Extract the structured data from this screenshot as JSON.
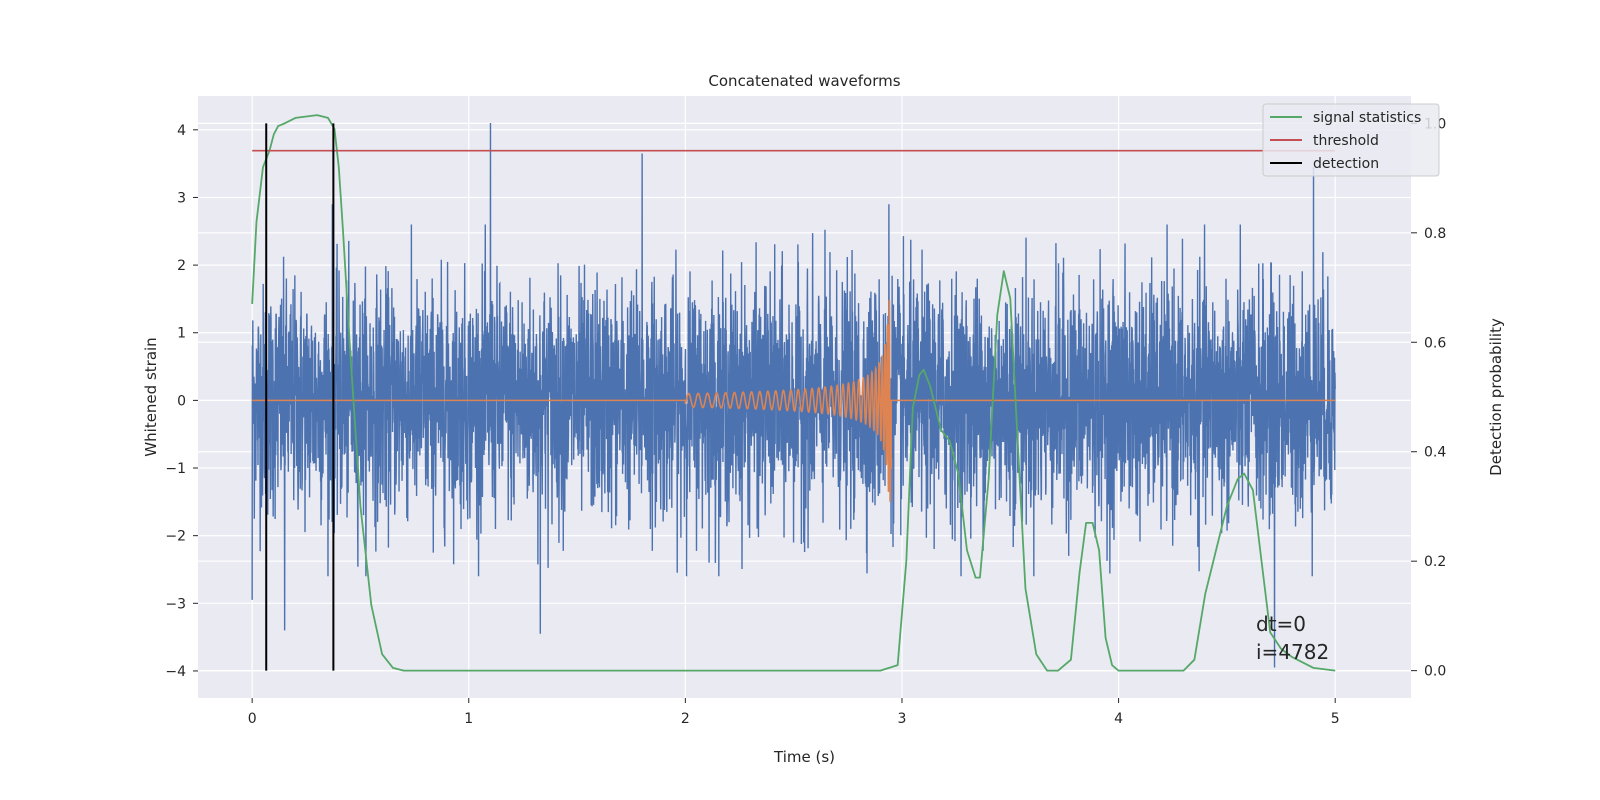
{
  "chart_data": {
    "type": "line",
    "title": "Concatenated waveforms",
    "xlabel": "Time (s)",
    "ylabel": "Whitened strain",
    "y2label": "Detection probability",
    "xlim": [
      -0.25,
      5.35
    ],
    "ylim": [
      -4.4,
      4.5
    ],
    "y2lim": [
      -0.05,
      1.05
    ],
    "x_ticks": [
      0,
      1,
      2,
      3,
      4,
      5
    ],
    "y_ticks": [
      -4,
      -3,
      -2,
      -1,
      0,
      1,
      2,
      3,
      4
    ],
    "y2_ticks": [
      0.0,
      0.2,
      0.4,
      0.6,
      0.8,
      1.0
    ],
    "grid": true,
    "legend_position": "top-right",
    "colors": {
      "background": "#eaeaf2",
      "strain": "#4c72b0",
      "injection": "#dd8452",
      "statistics": "#55a868",
      "threshold": "#c44e52",
      "detection": "#000000",
      "grid": "#ffffff"
    },
    "noise": {
      "x_range": [
        0,
        5
      ],
      "sample_count": 5000,
      "envelope_peaks": [
        {
          "x": 0.0,
          "y": -2.95
        },
        {
          "x": 0.15,
          "y": -3.4
        },
        {
          "x": 0.37,
          "y": 2.9
        },
        {
          "x": 1.1,
          "y": 4.1
        },
        {
          "x": 1.33,
          "y": -3.45
        },
        {
          "x": 1.8,
          "y": 3.65
        },
        {
          "x": 2.94,
          "y": 2.9
        },
        {
          "x": 4.72,
          "y": -3.95
        },
        {
          "x": 4.9,
          "y": 3.45
        }
      ]
    },
    "injection": {
      "x_range": [
        2.0,
        2.95
      ],
      "start_amplitude": 0.1,
      "peak_amplitude": 1.5,
      "peak_time": 2.94
    },
    "series": [
      {
        "name": "signal statistics",
        "axis": "right",
        "x": [
          0,
          0.02,
          0.05,
          0.08,
          0.1,
          0.12,
          0.15,
          0.2,
          0.3,
          0.35,
          0.38,
          0.4,
          0.42,
          0.45,
          0.5,
          0.55,
          0.6,
          0.65,
          0.7,
          1.0,
          2.0,
          2.9,
          2.98,
          3.02,
          3.05,
          3.08,
          3.1,
          3.13,
          3.18,
          3.22,
          3.26,
          3.3,
          3.34,
          3.36,
          3.4,
          3.44,
          3.47,
          3.5,
          3.53,
          3.57,
          3.62,
          3.67,
          3.72,
          3.78,
          3.82,
          3.85,
          3.88,
          3.91,
          3.94,
          3.97,
          4.0,
          4.05,
          4.3,
          4.35,
          4.4,
          4.45,
          4.5,
          4.55,
          4.58,
          4.62,
          4.66,
          4.7,
          4.75,
          4.8,
          4.85,
          4.9,
          5.0
        ],
        "y": [
          0.67,
          0.82,
          0.92,
          0.95,
          0.98,
          0.995,
          1.0,
          1.01,
          1.015,
          1.01,
          0.99,
          0.92,
          0.8,
          0.6,
          0.3,
          0.12,
          0.03,
          0.005,
          0.0,
          0.0,
          0.0,
          0.0,
          0.01,
          0.2,
          0.48,
          0.54,
          0.55,
          0.52,
          0.44,
          0.42,
          0.36,
          0.22,
          0.17,
          0.17,
          0.35,
          0.65,
          0.73,
          0.68,
          0.45,
          0.15,
          0.03,
          0.0,
          0.0,
          0.02,
          0.18,
          0.27,
          0.27,
          0.22,
          0.06,
          0.01,
          0.0,
          0.0,
          0.0,
          0.02,
          0.14,
          0.22,
          0.3,
          0.35,
          0.36,
          0.33,
          0.2,
          0.07,
          0.04,
          0.025,
          0.015,
          0.005,
          0.0
        ]
      },
      {
        "name": "threshold",
        "axis": "right",
        "x": [
          0,
          5
        ],
        "y": [
          0.95,
          0.95
        ]
      },
      {
        "name": "detection",
        "axis": "right",
        "x_positions": [
          0.065,
          0.375
        ],
        "y": [
          0.0,
          1.0
        ]
      }
    ],
    "annotations": [
      "dt=0",
      "i=4782"
    ]
  }
}
